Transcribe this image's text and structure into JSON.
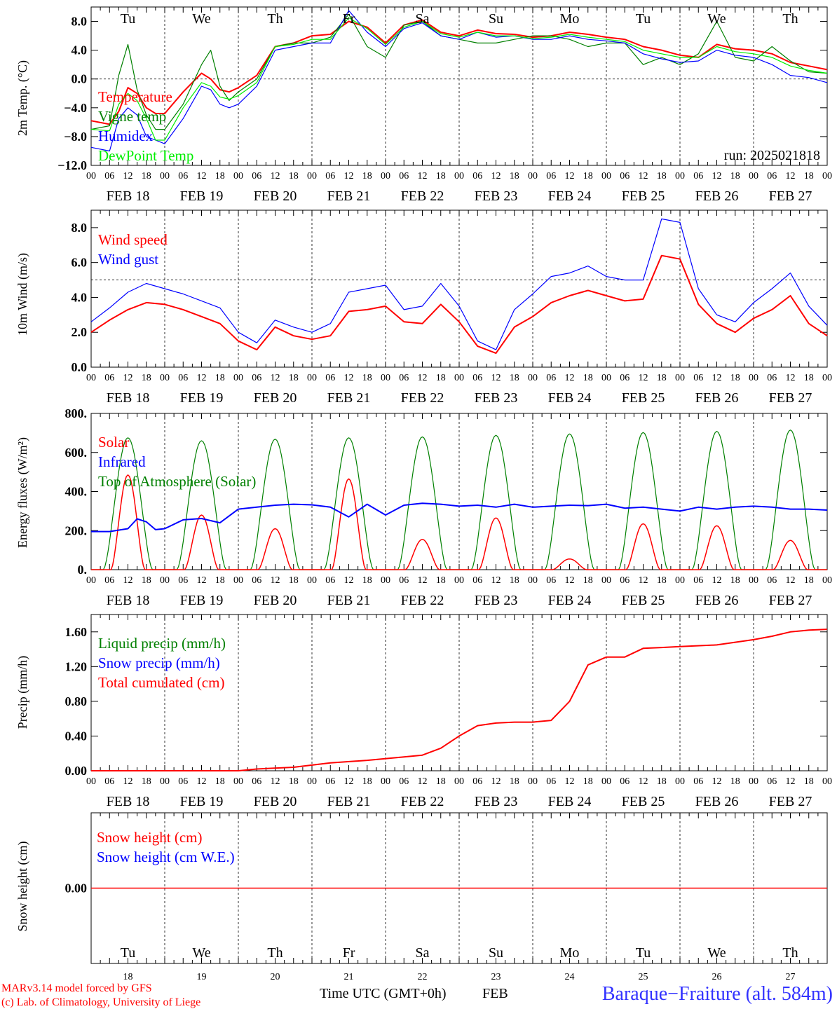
{
  "chart_data": [
    {
      "type": "line",
      "ylabel": "2m Temp. (°C)",
      "ylim": [
        -12,
        10
      ],
      "yticks": [
        "8.0",
        "4.0",
        "0.0",
        "−4.0",
        "−8.0",
        "−12.0"
      ],
      "reference_line": 0,
      "run_label": "run: 2025021818",
      "legend": [
        {
          "name": "Temperature",
          "color": "#ff0000"
        },
        {
          "name": "Vigne temp",
          "color": "#008000"
        },
        {
          "name": "Humidex",
          "color": "#0000ff"
        },
        {
          "name": "DewPoint Temp",
          "color": "#00ee00"
        }
      ],
      "x_hours": [
        0,
        6,
        9,
        12,
        15,
        18,
        21,
        24,
        30,
        36,
        39,
        42,
        45,
        48,
        54,
        60,
        66,
        72,
        78,
        84,
        90,
        96,
        102,
        108,
        114,
        120,
        126,
        132,
        138,
        144,
        150,
        156,
        162,
        168,
        174,
        180,
        186,
        192,
        198,
        204,
        210,
        216,
        222,
        228,
        234,
        240
      ],
      "series": [
        {
          "name": "Temperature",
          "color": "#ff0000",
          "values": [
            -5.8,
            -6.3,
            -4.5,
            -1.2,
            -2.0,
            -4.0,
            -4.8,
            -4.8,
            -1.8,
            0.8,
            0.0,
            -1.5,
            -1.8,
            -1.2,
            0.5,
            4.5,
            5.0,
            6.0,
            6.2,
            8.0,
            7.2,
            5.0,
            7.5,
            8.2,
            6.5,
            6.0,
            6.8,
            6.3,
            6.2,
            5.8,
            6.0,
            6.5,
            6.2,
            5.8,
            5.5,
            4.5,
            4.0,
            3.3,
            3.0,
            4.8,
            4.2,
            4.0,
            3.5,
            2.3,
            1.8,
            1.3
          ]
        },
        {
          "name": "Vigne temp",
          "color": "#008000",
          "values": [
            -7.0,
            -6.5,
            0.5,
            4.8,
            -1.5,
            -5.0,
            -7.0,
            -7.0,
            -3.5,
            2.0,
            4.0,
            -1.0,
            -3.0,
            -1.8,
            0.0,
            4.5,
            5.0,
            5.0,
            5.8,
            9.0,
            4.5,
            3.0,
            7.5,
            8.0,
            6.0,
            5.5,
            5.0,
            5.0,
            5.5,
            6.0,
            6.0,
            5.5,
            4.5,
            5.0,
            5.0,
            2.0,
            3.0,
            2.0,
            3.5,
            8.0,
            3.0,
            2.5,
            4.5,
            2.5,
            1.0,
            0.8
          ]
        },
        {
          "name": "Humidex",
          "color": "#0000ff",
          "values": [
            -9.5,
            -10.0,
            -5.5,
            -4.0,
            -5.0,
            -8.0,
            -8.5,
            -9.0,
            -5.5,
            -1.0,
            -1.5,
            -3.5,
            -4.0,
            -3.5,
            -1.0,
            4.0,
            4.5,
            5.0,
            5.0,
            9.5,
            6.5,
            4.5,
            7.0,
            7.8,
            6.0,
            5.5,
            6.5,
            5.8,
            6.0,
            5.5,
            5.5,
            6.0,
            5.5,
            5.3,
            5.0,
            3.5,
            2.8,
            2.3,
            2.5,
            4.0,
            3.3,
            3.0,
            2.0,
            0.5,
            0.2,
            -0.5
          ]
        },
        {
          "name": "DewPoint Temp",
          "color": "#00ee00",
          "values": [
            -7.0,
            -7.2,
            -3.5,
            -2.0,
            -3.0,
            -5.5,
            -8.5,
            -8.5,
            -4.0,
            -0.5,
            -1.0,
            -2.5,
            -2.8,
            -2.3,
            -0.5,
            4.5,
            4.8,
            5.5,
            5.5,
            8.5,
            7.0,
            4.8,
            7.2,
            8.0,
            6.3,
            5.8,
            6.5,
            6.0,
            6.0,
            5.6,
            5.8,
            6.2,
            5.8,
            5.5,
            5.2,
            4.0,
            3.5,
            3.0,
            3.0,
            4.5,
            3.8,
            3.5,
            3.0,
            1.8,
            1.2,
            0.8
          ]
        }
      ]
    },
    {
      "type": "line",
      "ylabel": "10m Wind (m/s)",
      "ylim": [
        0,
        9
      ],
      "yticks": [
        "8.0",
        "6.0",
        "4.0",
        "2.0",
        "0.0"
      ],
      "reference_line": 5,
      "legend": [
        {
          "name": "Wind speed",
          "color": "#ff0000"
        },
        {
          "name": "Wind gust",
          "color": "#0000ff"
        }
      ],
      "x_hours": [
        0,
        6,
        12,
        18,
        24,
        30,
        36,
        42,
        48,
        54,
        60,
        66,
        72,
        78,
        84,
        90,
        96,
        102,
        108,
        114,
        120,
        126,
        132,
        138,
        144,
        150,
        156,
        162,
        168,
        174,
        180,
        186,
        192,
        198,
        204,
        210,
        216,
        222,
        228,
        234,
        240
      ],
      "series": [
        {
          "name": "Wind speed",
          "color": "#ff0000",
          "values": [
            2.0,
            2.7,
            3.3,
            3.7,
            3.6,
            3.3,
            2.9,
            2.5,
            1.5,
            1.0,
            2.3,
            1.8,
            1.6,
            1.8,
            3.2,
            3.3,
            3.5,
            2.6,
            2.5,
            3.6,
            2.6,
            1.2,
            0.8,
            2.3,
            2.9,
            3.7,
            4.1,
            4.4,
            4.1,
            3.8,
            3.9,
            6.4,
            6.2,
            3.6,
            2.5,
            2.0,
            2.8,
            3.3,
            4.1,
            2.5,
            1.8
          ]
        },
        {
          "name": "Wind gust",
          "color": "#0000ff",
          "values": [
            2.6,
            3.4,
            4.3,
            4.8,
            4.5,
            4.2,
            3.8,
            3.4,
            2.0,
            1.4,
            2.7,
            2.3,
            2.0,
            2.5,
            4.3,
            4.5,
            4.7,
            3.3,
            3.5,
            4.8,
            3.5,
            1.5,
            1.0,
            3.3,
            4.2,
            5.2,
            5.4,
            5.8,
            5.2,
            5.0,
            5.0,
            8.5,
            8.3,
            4.5,
            3.0,
            2.6,
            3.7,
            4.5,
            5.4,
            3.5,
            2.4
          ]
        }
      ]
    },
    {
      "type": "line",
      "ylabel": "Energy fluxes (W/m²)",
      "ylim": [
        0,
        800
      ],
      "yticks": [
        "800.",
        "600.",
        "400.",
        "200.",
        "0."
      ],
      "legend": [
        {
          "name": "Solar",
          "color": "#ff0000"
        },
        {
          "name": "Infrared",
          "color": "#0000ff"
        },
        {
          "name": "Top of Atmosphere (Solar)",
          "color": "#008000"
        }
      ],
      "infrared_x_hours": [
        0,
        6,
        12,
        15,
        18,
        21,
        24,
        30,
        36,
        42,
        48,
        54,
        60,
        66,
        72,
        78,
        84,
        90,
        96,
        102,
        108,
        114,
        120,
        126,
        132,
        138,
        144,
        150,
        156,
        162,
        168,
        174,
        180,
        186,
        192,
        198,
        204,
        210,
        216,
        222,
        228,
        234,
        240
      ],
      "infrared_values": [
        195,
        195,
        210,
        260,
        245,
        205,
        210,
        255,
        262,
        240,
        310,
        320,
        330,
        335,
        332,
        320,
        270,
        335,
        280,
        330,
        340,
        335,
        325,
        330,
        320,
        335,
        320,
        325,
        330,
        328,
        335,
        315,
        320,
        310,
        300,
        320,
        310,
        320,
        325,
        320,
        310,
        310,
        305
      ],
      "solar_peaks": [
        485,
        280,
        210,
        465,
        155,
        265,
        55,
        235,
        225,
        150
      ],
      "toa_peaks": [
        675,
        660,
        668,
        675,
        680,
        688,
        695,
        702,
        708,
        715
      ]
    },
    {
      "type": "line",
      "ylabel": "Precip (mm/h)",
      "ylim": [
        0,
        1.8
      ],
      "yticks": [
        "1.60",
        "1.20",
        "0.80",
        "0.40",
        "0.00"
      ],
      "legend": [
        {
          "name": "Liquid precip (mm/h)",
          "color": "#008000"
        },
        {
          "name": "Snow precip (mm/h)",
          "color": "#0000ff"
        },
        {
          "name": "Total cumulated (cm)",
          "color": "#ff0000"
        }
      ],
      "cumulated_x_hours": [
        0,
        48,
        54,
        66,
        78,
        90,
        102,
        108,
        114,
        120,
        126,
        132,
        138,
        144,
        150,
        156,
        162,
        168,
        174,
        180,
        186,
        192,
        204,
        216,
        222,
        228,
        234,
        240
      ],
      "cumulated_values": [
        0,
        0,
        0.02,
        0.04,
        0.09,
        0.12,
        0.16,
        0.18,
        0.26,
        0.4,
        0.52,
        0.55,
        0.56,
        0.56,
        0.58,
        0.8,
        1.22,
        1.31,
        1.31,
        1.41,
        1.42,
        1.43,
        1.45,
        1.51,
        1.55,
        1.6,
        1.62,
        1.63
      ]
    },
    {
      "type": "line",
      "ylabel": "Snow height (cm)",
      "yticks": [
        "0.00"
      ],
      "legend": [
        {
          "name": "Snow height (cm)",
          "color": "#ff0000"
        },
        {
          "name": "Snow height (cm W.E.)",
          "color": "#0000ff"
        }
      ],
      "values": [
        0,
        0
      ]
    }
  ],
  "days": {
    "top_labels": [
      "Tu",
      "We",
      "Th",
      "Fr",
      "Sa",
      "Su",
      "Mo",
      "Tu",
      "We",
      "Th"
    ],
    "weekend_color": "#ff0000",
    "date_labels": [
      "FEB 18",
      "FEB 19",
      "FEB 20",
      "FEB 21",
      "FEB 22",
      "FEB 23",
      "FEB 24",
      "FEB 25",
      "FEB 26",
      "FEB 27"
    ],
    "day_numbers": [
      "18",
      "19",
      "20",
      "21",
      "22",
      "23",
      "24",
      "25",
      "26",
      "27"
    ],
    "hour_labels": [
      "00",
      "06",
      "12",
      "18"
    ],
    "last_hour_label": "00"
  },
  "footer": {
    "credit_line1": "MARv3.14 model forced by GFS",
    "credit_line2": "(c) Lab. of Climatology, University of Liege",
    "xaxis_title": "Time UTC (GMT+0h)",
    "month": "FEB",
    "station": "Baraque−Fraiture (alt. 584m)"
  }
}
